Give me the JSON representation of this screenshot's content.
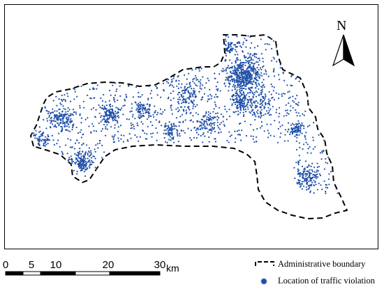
{
  "north_arrow": {
    "label": "N",
    "icon": "north-arrow-icon"
  },
  "scale_bar": {
    "ticks": [
      "0",
      "5",
      "10",
      "20",
      "30"
    ],
    "tick_km": [
      0,
      5,
      10,
      20,
      30
    ],
    "unit": "km"
  },
  "legend": {
    "items": [
      {
        "label": "Administrative boundary",
        "icon": "dashed-boundary-icon"
      },
      {
        "label": "Location of traffic violation",
        "icon": "blue-dot-icon",
        "color": "#1f4fa8"
      }
    ]
  },
  "colors": {
    "points": "#1f4fa8",
    "boundary": "#000000"
  }
}
